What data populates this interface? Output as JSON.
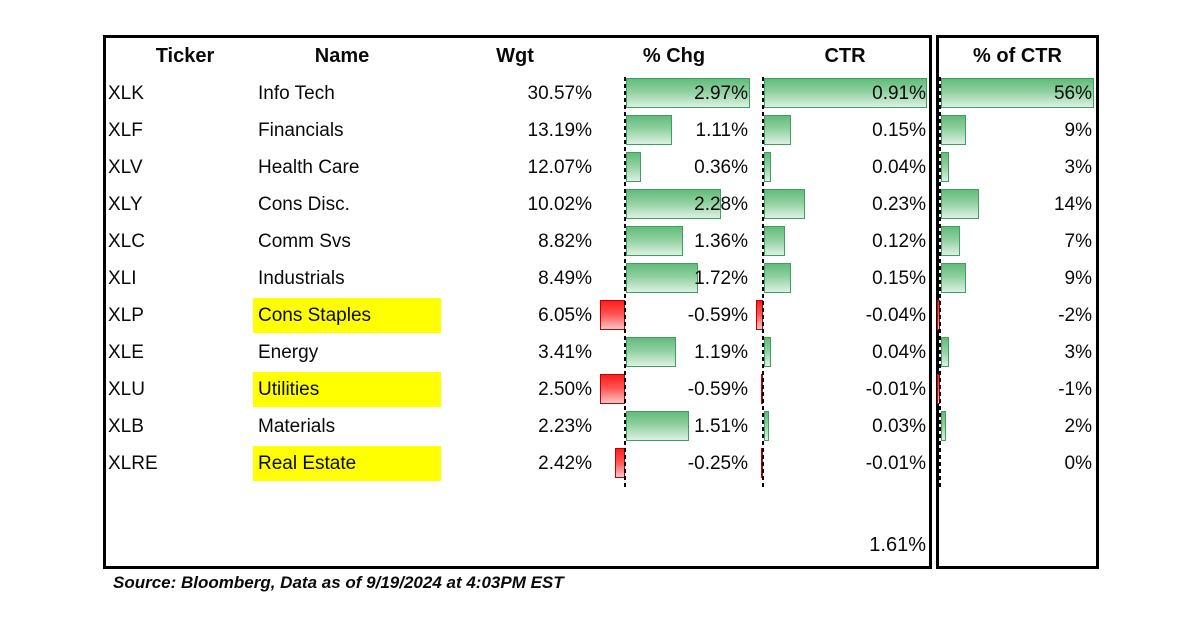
{
  "source_note": "Source: Bloomberg, Data as of 9/19/2024 at 4:03PM EST",
  "chart_data": {
    "type": "table",
    "headers": [
      "Ticker",
      "Name",
      "Wgt",
      "% Chg",
      "CTR",
      "% of CTR"
    ],
    "colors": {
      "positive_bar": "#63bc7b",
      "positive_bar_border": "#3f9e62",
      "negative_bar": "#ff1e1e",
      "negative_bar_border": "#c00000",
      "highlight": "#ffff00",
      "text": "#0a0a0a"
    },
    "layout_hints": {
      "bars": "excel-style data bars with dashed zero axis per numeric column",
      "highlighted_names": [
        "Cons Staples",
        "Utilities",
        "Real Estate"
      ]
    },
    "rows": [
      {
        "ticker": "XLK",
        "name": "Info Tech",
        "highlight": false,
        "wgt": "30.57%",
        "chg": 2.97,
        "chg_label": "2.97%",
        "ctr": 0.91,
        "ctr_label": "0.91%",
        "pct": 56,
        "pct_label": "56%"
      },
      {
        "ticker": "XLF",
        "name": "Financials",
        "highlight": false,
        "wgt": "13.19%",
        "chg": 1.11,
        "chg_label": "1.11%",
        "ctr": 0.15,
        "ctr_label": "0.15%",
        "pct": 9,
        "pct_label": "9%"
      },
      {
        "ticker": "XLV",
        "name": "Health Care",
        "highlight": false,
        "wgt": "12.07%",
        "chg": 0.36,
        "chg_label": "0.36%",
        "ctr": 0.04,
        "ctr_label": "0.04%",
        "pct": 3,
        "pct_label": "3%"
      },
      {
        "ticker": "XLY",
        "name": "Cons Disc.",
        "highlight": false,
        "wgt": "10.02%",
        "chg": 2.28,
        "chg_label": "2.28%",
        "ctr": 0.23,
        "ctr_label": "0.23%",
        "pct": 14,
        "pct_label": "14%"
      },
      {
        "ticker": "XLC",
        "name": "Comm Svs",
        "highlight": false,
        "wgt": "8.82%",
        "chg": 1.36,
        "chg_label": "1.36%",
        "ctr": 0.12,
        "ctr_label": "0.12%",
        "pct": 7,
        "pct_label": "7%"
      },
      {
        "ticker": "XLI",
        "name": "Industrials",
        "highlight": false,
        "wgt": "8.49%",
        "chg": 1.72,
        "chg_label": "1.72%",
        "ctr": 0.15,
        "ctr_label": "0.15%",
        "pct": 9,
        "pct_label": "9%"
      },
      {
        "ticker": "XLP",
        "name": "Cons Staples",
        "highlight": true,
        "wgt": "6.05%",
        "chg": -0.59,
        "chg_label": "-0.59%",
        "ctr": -0.04,
        "ctr_label": "-0.04%",
        "pct": -2,
        "pct_label": "-2%"
      },
      {
        "ticker": "XLE",
        "name": "Energy",
        "highlight": false,
        "wgt": "3.41%",
        "chg": 1.19,
        "chg_label": "1.19%",
        "ctr": 0.04,
        "ctr_label": "0.04%",
        "pct": 3,
        "pct_label": "3%"
      },
      {
        "ticker": "XLU",
        "name": "Utilities",
        "highlight": true,
        "wgt": "2.50%",
        "chg": -0.59,
        "chg_label": "-0.59%",
        "ctr": -0.01,
        "ctr_label": "-0.01%",
        "pct": -1,
        "pct_label": "-1%"
      },
      {
        "ticker": "XLB",
        "name": "Materials",
        "highlight": false,
        "wgt": "2.23%",
        "chg": 1.51,
        "chg_label": "1.51%",
        "ctr": 0.03,
        "ctr_label": "0.03%",
        "pct": 2,
        "pct_label": "2%"
      },
      {
        "ticker": "XLRE",
        "name": "Real Estate",
        "highlight": true,
        "wgt": "2.42%",
        "chg": -0.25,
        "chg_label": "-0.25%",
        "ctr": -0.01,
        "ctr_label": "-0.01%",
        "pct": 0,
        "pct_label": "0%"
      }
    ],
    "total_ctr_label": "1.61%"
  }
}
